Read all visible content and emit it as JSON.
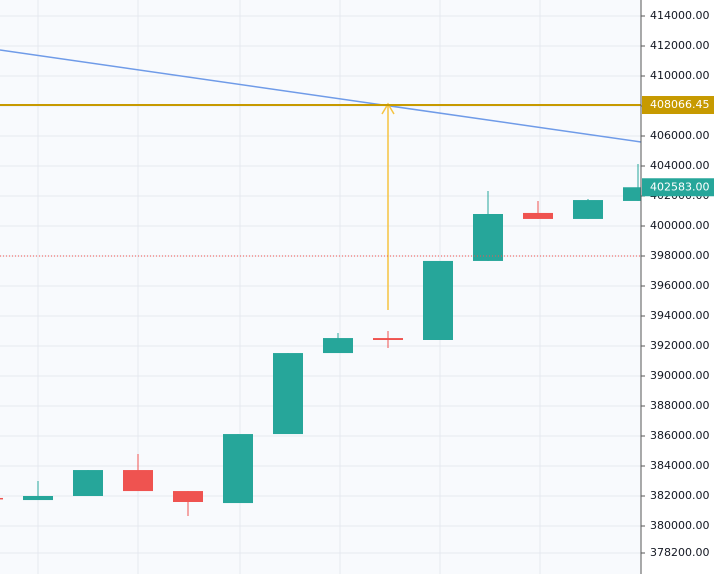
{
  "chart_data": {
    "type": "candlestick",
    "categories": [
      null,
      null,
      null,
      null,
      null,
      null,
      null,
      null,
      null,
      null,
      null,
      null,
      null,
      null
    ],
    "open": [
      381870,
      381730,
      382000,
      383730,
      382330,
      381530,
      386130,
      391530,
      392530,
      392400,
      397670,
      400870,
      400470,
      401670
    ],
    "high": [
      381900,
      383000,
      383730,
      384800,
      382330,
      386130,
      391530,
      392870,
      393000,
      397670,
      402330,
      401670,
      401800,
      404130
    ],
    "low": [
      381780,
      381730,
      382000,
      382330,
      380670,
      381530,
      386130,
      391530,
      391870,
      392400,
      397670,
      400470,
      400470,
      401670
    ],
    "close": [
      381800,
      382000,
      383730,
      382330,
      381600,
      386130,
      391530,
      392530,
      392400,
      397670,
      400800,
      400470,
      401730,
      402583
    ],
    "up_color": "#26a69a",
    "down_color": "#ef5350",
    "ylim": [
      376800,
      415067
    ],
    "yticks": [
      {
        "value": 414000,
        "label": "414000.00"
      },
      {
        "value": 412000,
        "label": "412000.00"
      },
      {
        "value": 410000,
        "label": "410000.00"
      },
      {
        "value": 408000,
        "label": "408000.00"
      },
      {
        "value": 406000,
        "label": "406000.00"
      },
      {
        "value": 404000,
        "label": "404000.00"
      },
      {
        "value": 402000,
        "label": "402000.00"
      },
      {
        "value": 400000,
        "label": "400000.00"
      },
      {
        "value": 398000,
        "label": "398000.00"
      },
      {
        "value": 396000,
        "label": "396000.00"
      },
      {
        "value": 394000,
        "label": "394000.00"
      },
      {
        "value": 392000,
        "label": "392000.00"
      },
      {
        "value": 390000,
        "label": "390000.00"
      },
      {
        "value": 388000,
        "label": "388000.00"
      },
      {
        "value": 386000,
        "label": "386000.00"
      },
      {
        "value": 384000,
        "label": "384000.00"
      },
      {
        "value": 382000,
        "label": "382000.00"
      },
      {
        "value": 380000,
        "label": "380000.00"
      },
      {
        "value": 378200,
        "label": "378200.00"
      }
    ],
    "grid": true,
    "horizontal_line": {
      "value": 408066.45,
      "label": "408066.45",
      "color": "#c79a00"
    },
    "last_price": {
      "value": 402583,
      "label": "402583.00",
      "color": "#26a69a"
    },
    "reference_line": {
      "value": 398000,
      "color": "#ef5350"
    }
  }
}
